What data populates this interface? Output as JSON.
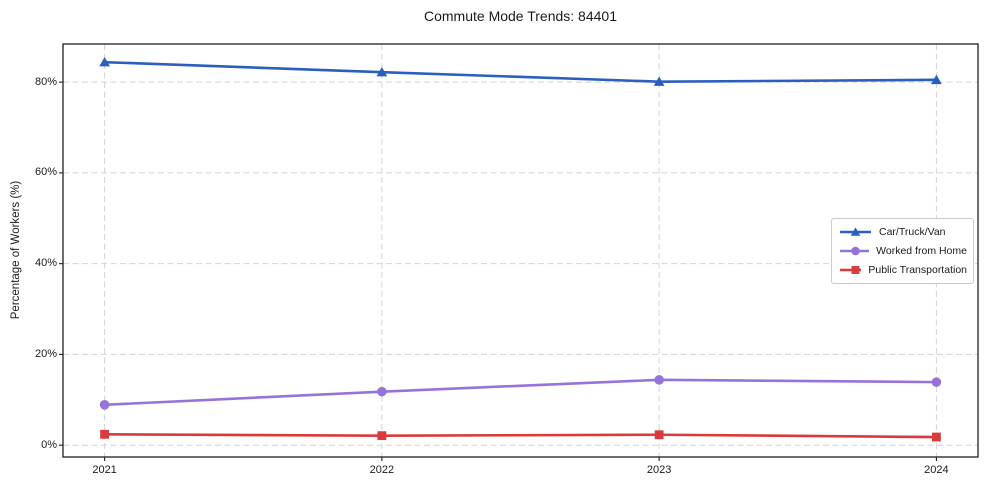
{
  "chart_data": {
    "type": "line",
    "title": "Commute Mode Trends: 84401",
    "xlabel": "",
    "ylabel": "Percentage of Workers (%)",
    "x": [
      2021,
      2022,
      2023,
      2024
    ],
    "categories": [
      "2021",
      "2022",
      "2023",
      "2024"
    ],
    "series": [
      {
        "name": "Car/Truck/Van",
        "marker": "triangle",
        "color": "#2b5fbf",
        "values": [
          84.4,
          82.2,
          80.1,
          80.5
        ]
      },
      {
        "name": "Worked from Home",
        "marker": "circle",
        "color": "#9673d9",
        "values": [
          8.9,
          11.8,
          14.4,
          13.9
        ]
      },
      {
        "name": "Public Transportation",
        "marker": "square",
        "color": "#d93a3c",
        "values": [
          2.4,
          2.1,
          2.3,
          1.8
        ]
      }
    ],
    "yticks": {
      "values": [
        0,
        20,
        40,
        60,
        80
      ],
      "labels": [
        "0%",
        "20%",
        "40%",
        "60%",
        "80%"
      ]
    },
    "ylim": [
      -2.6,
      88.4
    ],
    "xlim": [
      2020.85,
      2024.15
    ],
    "grid": "dashed-both",
    "legend_position": "center-right",
    "colors": {
      "background": "#ffffff",
      "grid": "#d4d4d4",
      "spine": "#1f1f1f",
      "text": "#1a1a1a"
    }
  }
}
